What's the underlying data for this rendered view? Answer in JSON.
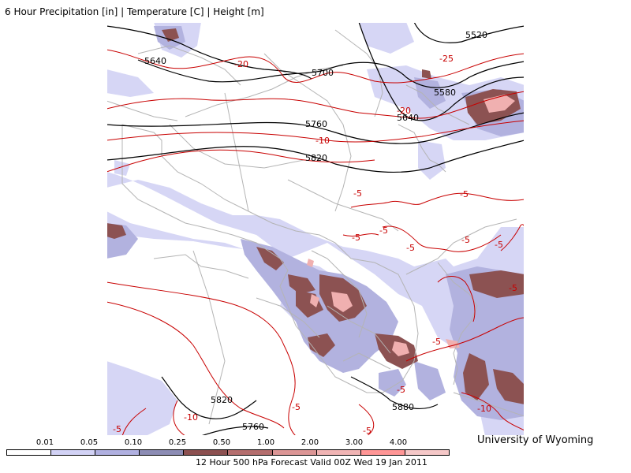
{
  "header": {
    "title": "6 Hour Precipitation [in] | Temperature [C] | Height [m]"
  },
  "map": {
    "height_labels": [
      "5640",
      "5700",
      "5520",
      "5580",
      "5640",
      "5760",
      "5820",
      "5820",
      "5760",
      "5880"
    ],
    "temperature_labels": [
      "-20",
      "-25",
      "-20",
      "-10",
      "-5",
      "-5",
      "-5",
      "-5",
      "-5",
      "-5",
      "-5",
      "-5",
      "-5",
      "-5",
      "-10",
      "-5",
      "-10",
      "-5",
      "-5"
    ],
    "colors": {
      "height_contour": "#000000",
      "temperature_contour": "#cc0000",
      "borders": "#b4b4b4"
    }
  },
  "legend": {
    "ticks": [
      "0.01",
      "0.05",
      "0.10",
      "0.25",
      "0.50",
      "1.00",
      "2.00",
      "3.00",
      "4.00"
    ],
    "colors": [
      "#ffffff",
      "#d2d2f5",
      "#b0b0e0",
      "#8c8cb4",
      "#8c5050",
      "#b46e6e",
      "#dc9696",
      "#f0b4b4",
      "#ff9696"
    ]
  },
  "credit": "University of Wyoming",
  "footer": "12 Hour 500 hPa Forecast Valid 00Z Wed 19 Jan 2011"
}
